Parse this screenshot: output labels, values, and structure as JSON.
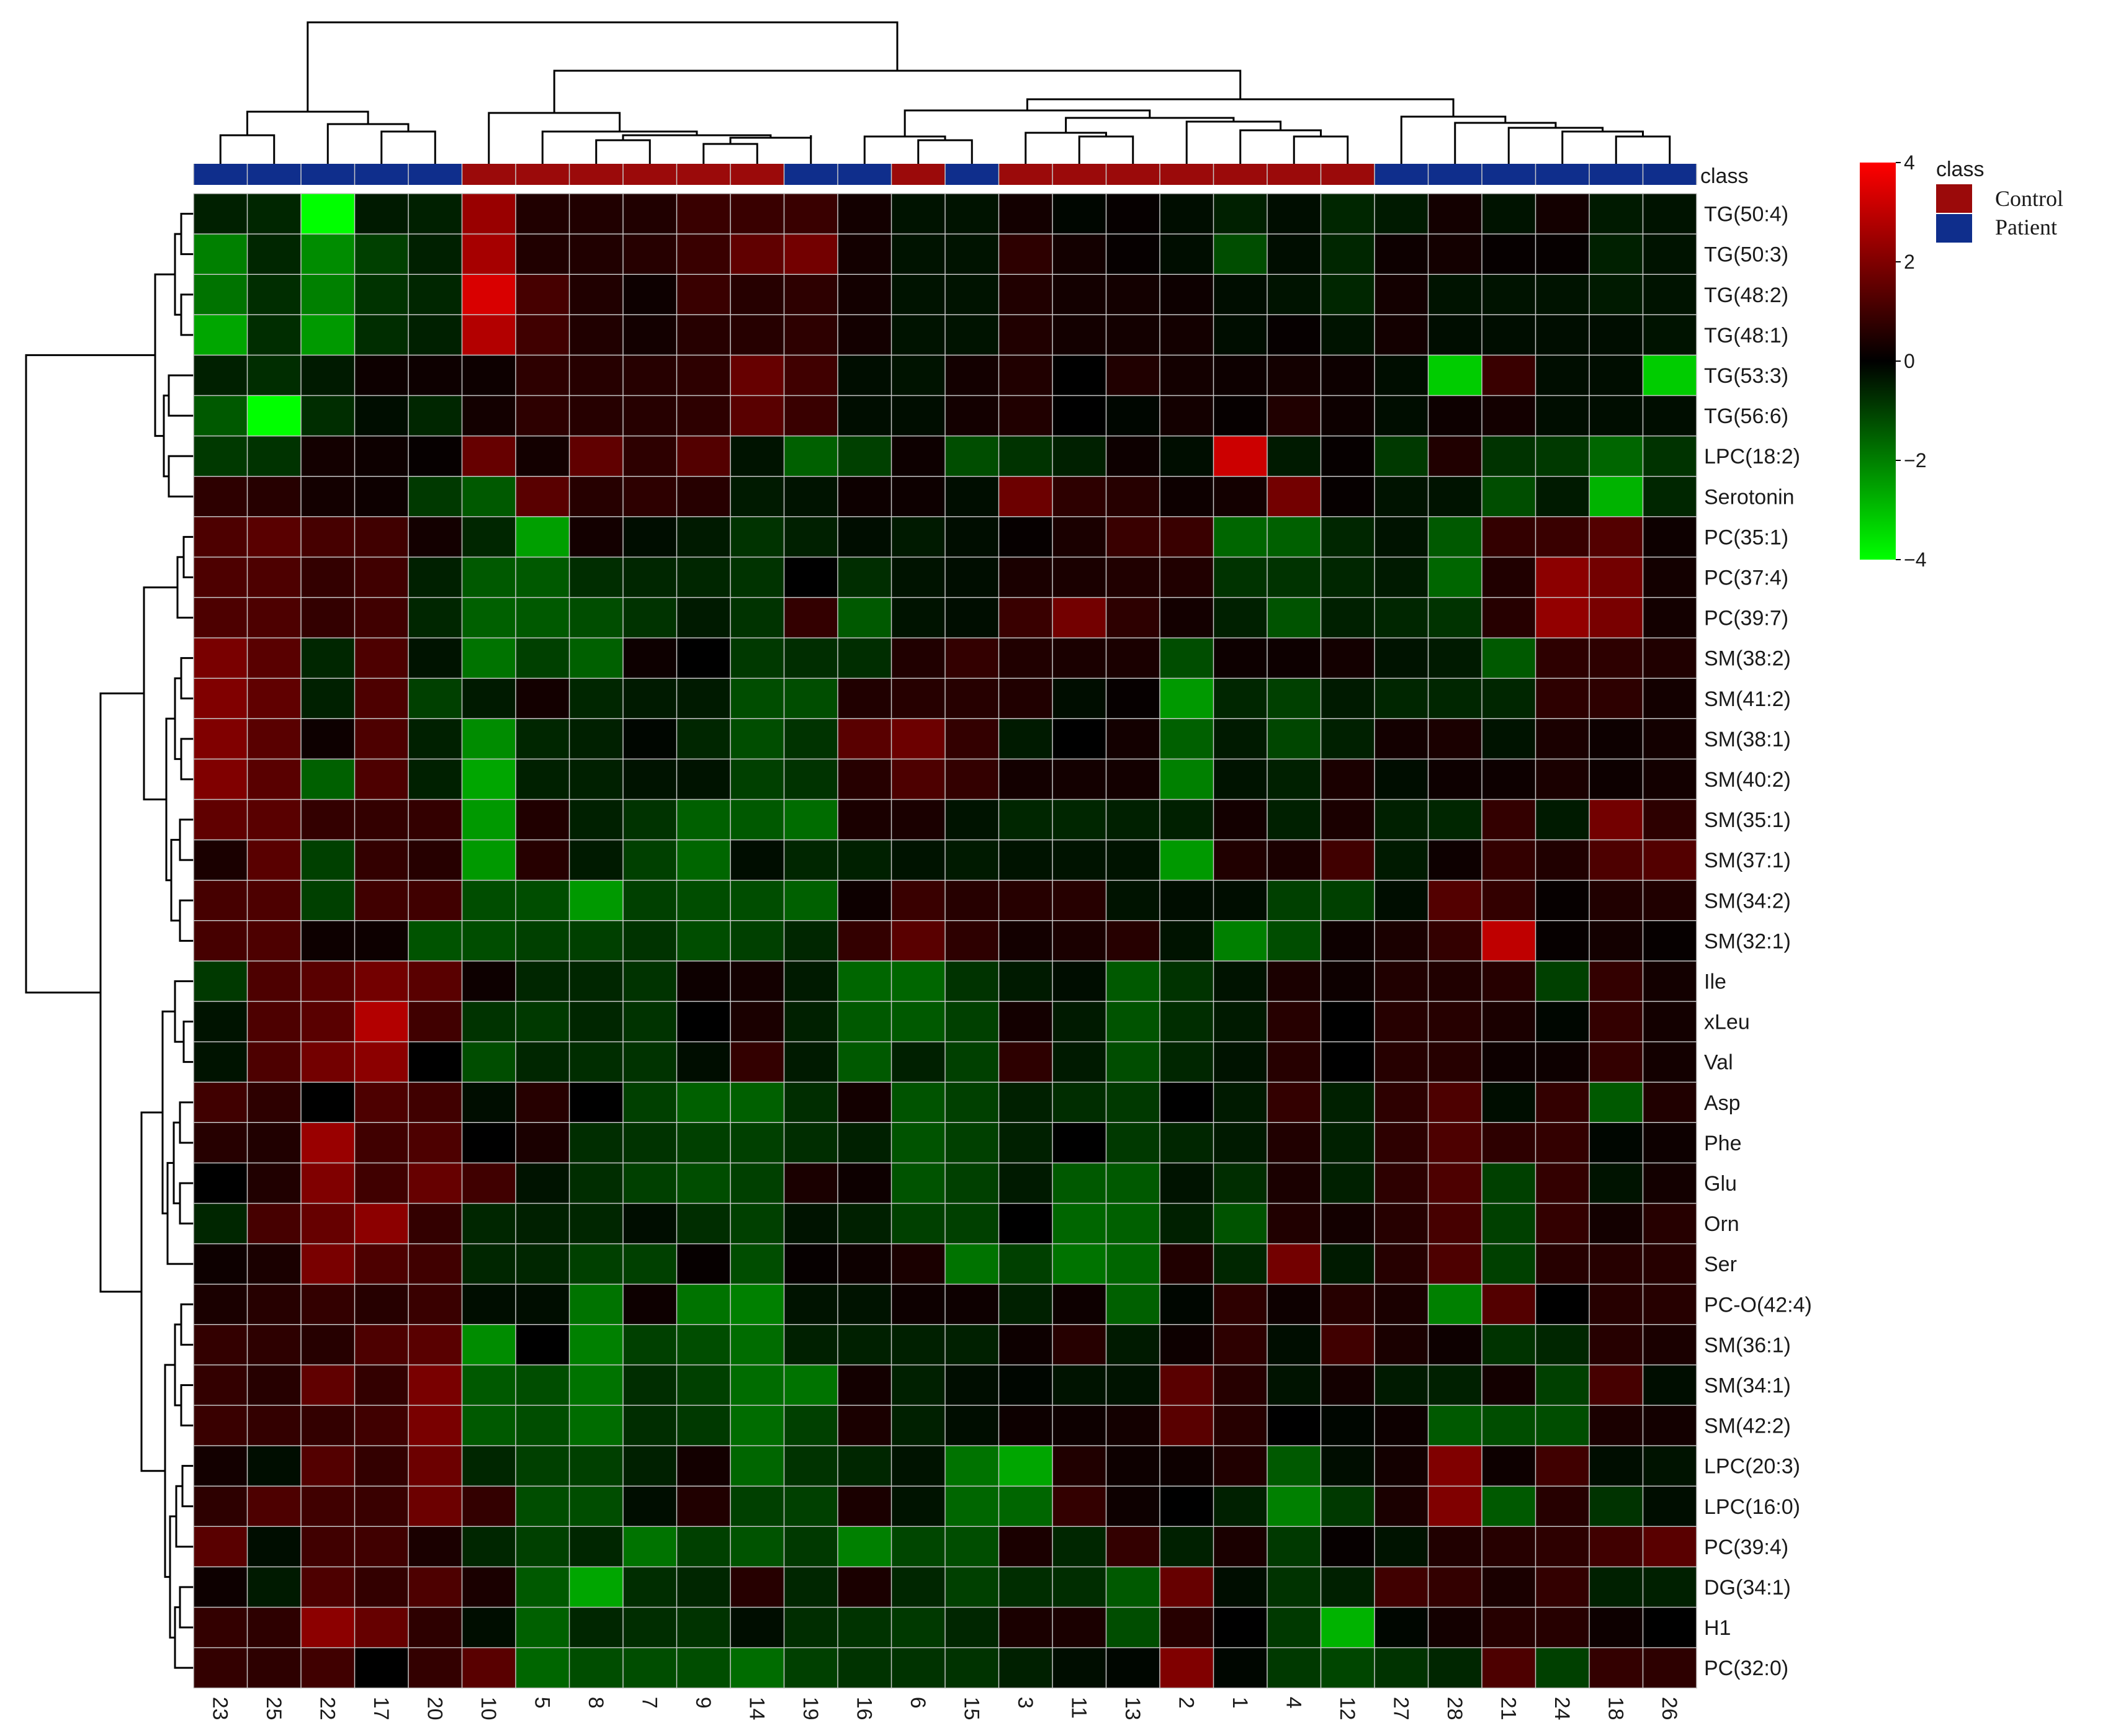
{
  "chart_data": {
    "type": "heatmap",
    "class_label": "class",
    "legend": {
      "title": "class",
      "items": [
        {
          "label": "Control",
          "color": "#9b0a0a"
        },
        {
          "label": "Patient",
          "color": "#0f2e8c"
        }
      ]
    },
    "color_scale": {
      "ticks": [
        "4",
        "2",
        "0",
        "−2",
        "−4"
      ],
      "tick_values": [
        4,
        2,
        0,
        -2,
        -4
      ],
      "range": [
        -4,
        4
      ],
      "colors": {
        "high": "#ff0000",
        "mid": "#000000",
        "low": "#00ff00"
      }
    },
    "columns": [
      "23",
      "25",
      "22",
      "17",
      "20",
      "10",
      "5",
      "8",
      "7",
      "9",
      "14",
      "19",
      "16",
      "6",
      "15",
      "3",
      "11",
      "13",
      "2",
      "1",
      "4",
      "12",
      "27",
      "28",
      "21",
      "24",
      "18",
      "26"
    ],
    "column_class": [
      "P",
      "P",
      "P",
      "P",
      "P",
      "C",
      "C",
      "C",
      "C",
      "C",
      "C",
      "P",
      "P",
      "C",
      "P",
      "C",
      "C",
      "C",
      "C",
      "C",
      "C",
      "C",
      "P",
      "P",
      "P",
      "P",
      "P",
      "P"
    ],
    "rows": [
      "TG(50:4)",
      "TG(50:3)",
      "TG(48:2)",
      "TG(48:1)",
      "TG(53:3)",
      "TG(56:6)",
      "LPC(18:2)",
      "Serotonin",
      "PC(35:1)",
      "PC(37:4)",
      "PC(39:7)",
      "SM(38:2)",
      "SM(41:2)",
      "SM(38:1)",
      "SM(40:2)",
      "SM(35:1)",
      "SM(37:1)",
      "SM(34:2)",
      "SM(32:1)",
      "Ile",
      "xLeu",
      "Val",
      "Asp",
      "Phe",
      "Glu",
      "Orn",
      "Ser",
      "PC-O(42:4)",
      "SM(36:1)",
      "SM(34:1)",
      "SM(42:2)",
      "LPC(20:3)",
      "LPC(16:0)",
      "PC(39:4)",
      "DG(34:1)",
      "H1",
      "PC(32:0)"
    ],
    "values": [
      [
        -0.5,
        -0.6,
        -4,
        -0.4,
        -0.5,
        2.4,
        0.5,
        0.5,
        0.5,
        0.9,
        0.9,
        0.9,
        0.3,
        -0.3,
        -0.3,
        0.3,
        -0.1,
        0.1,
        -0.2,
        -0.5,
        -0.2,
        -0.6,
        -0.4,
        0.3,
        -0.3,
        0.3,
        -0.4,
        -0.3
      ],
      [
        -2,
        -0.6,
        -2.2,
        -1,
        -0.5,
        2.6,
        0.5,
        0.5,
        0.6,
        0.9,
        1.5,
        1.8,
        0.3,
        -0.3,
        -0.3,
        0.7,
        0.3,
        0.1,
        -0.2,
        -1.2,
        -0.2,
        -0.6,
        0.2,
        0.3,
        0.1,
        0.1,
        -0.5,
        -0.3
      ],
      [
        -1.8,
        -0.7,
        -2,
        -0.8,
        -0.6,
        3.4,
        1.1,
        0.5,
        0.2,
        0.9,
        0.6,
        0.7,
        0.3,
        -0.3,
        -0.3,
        0.5,
        0.3,
        0.3,
        0.2,
        -0.2,
        -0.3,
        -0.6,
        0.3,
        -0.3,
        -0.3,
        -0.3,
        -0.4,
        -0.3
      ],
      [
        -2.6,
        -0.7,
        -2.4,
        -0.7,
        -0.5,
        2.8,
        1,
        0.5,
        0.3,
        0.6,
        0.6,
        0.7,
        0.3,
        -0.3,
        -0.3,
        0.5,
        0.3,
        0.3,
        0.3,
        -0.2,
        0.1,
        -0.3,
        0.3,
        -0.2,
        -0.2,
        -0.2,
        -0.2,
        -0.3
      ],
      [
        -0.5,
        -0.7,
        -0.4,
        0.2,
        0.2,
        0.2,
        0.7,
        0.6,
        0.6,
        0.7,
        1.6,
        1,
        -0.2,
        -0.3,
        0.3,
        0.5,
        0,
        0.5,
        0.3,
        0.2,
        0.3,
        0.2,
        -0.2,
        -3.2,
        0.9,
        -0.2,
        -0.2,
        -3.2
      ],
      [
        -1.4,
        -4,
        -0.7,
        -0.2,
        -0.6,
        0.3,
        0.7,
        0.6,
        0.6,
        0.7,
        1.4,
        0.9,
        -0.2,
        -0.2,
        0.3,
        0.5,
        0,
        -0.1,
        0.3,
        0.1,
        0.5,
        0.2,
        -0.2,
        0.2,
        0.3,
        -0.2,
        -0.2,
        -0.2
      ],
      [
        -0.9,
        -0.8,
        0.3,
        0.2,
        0.1,
        1.6,
        0.3,
        1.5,
        0.7,
        1.3,
        -0.3,
        -1.5,
        -1,
        0.2,
        -1.2,
        -0.8,
        -0.5,
        0.2,
        -0.2,
        3.2,
        -0.4,
        0.1,
        -0.9,
        0.5,
        -0.8,
        -0.9,
        -1.6,
        -0.8
      ],
      [
        0.7,
        0.6,
        0.3,
        0.2,
        -0.9,
        -1.4,
        1.4,
        0.6,
        0.7,
        0.6,
        -0.4,
        -0.3,
        0.2,
        0.2,
        -0.2,
        1.7,
        0.7,
        0.6,
        0.2,
        0.3,
        1.8,
        0.1,
        -0.3,
        -0.3,
        -1.2,
        -0.4,
        -2.8,
        -0.6
      ],
      [
        1.2,
        1.4,
        1.1,
        1,
        0.3,
        -0.6,
        -2.5,
        0.3,
        -0.2,
        -0.4,
        -0.8,
        -0.5,
        -0.2,
        -0.4,
        -0.2,
        0.1,
        0.4,
        0.9,
        0.9,
        -1.6,
        -1.5,
        -0.6,
        -0.3,
        -1.4,
        0.8,
        0.9,
        1.3,
        0.2
      ],
      [
        1.2,
        1.2,
        0.8,
        1,
        -0.5,
        -1.4,
        -1.4,
        -0.7,
        -0.6,
        -0.6,
        -0.8,
        0,
        -0.7,
        -0.3,
        -0.2,
        0.4,
        0.4,
        0.5,
        0.5,
        -0.8,
        -0.8,
        -0.6,
        -0.4,
        -1.6,
        0.5,
        2.2,
        1.8,
        0.3
      ],
      [
        1.2,
        1.2,
        0.8,
        1,
        -0.6,
        -1.5,
        -1.4,
        -1.2,
        -0.8,
        -0.4,
        -0.8,
        0.8,
        -1.4,
        -0.3,
        -0.2,
        0.9,
        1.8,
        0.7,
        0.3,
        -0.5,
        -1.3,
        -0.5,
        -0.6,
        -0.8,
        0.6,
        2.3,
        1.9,
        0.3
      ],
      [
        1.9,
        1.4,
        -0.6,
        1.2,
        -0.3,
        -1.8,
        -1,
        -1.5,
        0.2,
        0,
        -0.9,
        -0.7,
        -0.7,
        0.5,
        0.8,
        0.5,
        0.4,
        0.4,
        -1.2,
        0.2,
        0.2,
        0.3,
        -0.3,
        -0.4,
        -1.4,
        0.7,
        0.7,
        0.5
      ],
      [
        2,
        1.5,
        -0.5,
        1.2,
        -1,
        -0.4,
        0.3,
        -0.6,
        -0.4,
        -0.4,
        -1.2,
        -1.2,
        0.5,
        0.6,
        0.6,
        0.5,
        -0.2,
        0.1,
        -2.4,
        -0.6,
        -1,
        -0.4,
        -0.6,
        -0.6,
        -0.6,
        0.7,
        0.7,
        0.3
      ],
      [
        2,
        1.4,
        0.2,
        1.2,
        -0.5,
        -2.2,
        -0.6,
        -0.5,
        -0.1,
        -0.6,
        -1.2,
        -0.8,
        1.4,
        1.7,
        0.8,
        -0.4,
        0,
        0.3,
        -1.5,
        -0.4,
        -1.1,
        -0.5,
        0.3,
        0.4,
        -0.3,
        0.4,
        0.2,
        0.3
      ],
      [
        2,
        1.4,
        -1.5,
        1.2,
        -0.5,
        -2.6,
        -0.5,
        -0.5,
        -0.3,
        -0.3,
        -1,
        -0.8,
        0.6,
        1.2,
        0.8,
        0.3,
        0.3,
        0.3,
        -2,
        -0.3,
        -0.5,
        0.4,
        -0.2,
        0.2,
        0.2,
        0.4,
        0.2,
        0.3
      ],
      [
        1.5,
        1.4,
        0.8,
        0.8,
        0.8,
        -2.4,
        0.5,
        -0.5,
        -0.8,
        -1.5,
        -1.4,
        -1.7,
        0.4,
        0.4,
        -0.3,
        -0.6,
        -0.6,
        -0.5,
        -0.5,
        0.3,
        -0.5,
        0.4,
        -0.5,
        -0.6,
        0.8,
        -0.4,
        1.8,
        0.7
      ],
      [
        0.4,
        1.4,
        -1,
        0.8,
        0.6,
        -2.4,
        0.6,
        -0.4,
        -1,
        -1.6,
        -0.2,
        -0.6,
        -0.5,
        -0.3,
        -0.4,
        -0.3,
        -0.3,
        -0.3,
        -2.4,
        0.5,
        0.4,
        1,
        -0.4,
        0.2,
        0.8,
        0.5,
        1.2,
        1.3
      ],
      [
        1.1,
        1.2,
        -1,
        1,
        1,
        -1.2,
        -1.2,
        -2.4,
        -1,
        -1.2,
        -1.2,
        -1.5,
        0.2,
        0.9,
        0.6,
        0.6,
        0.6,
        -0.3,
        -0.2,
        -0.2,
        -1,
        -1,
        -0.2,
        1.3,
        0.8,
        0.1,
        0.5,
        0.5
      ],
      [
        1.1,
        1.2,
        0.2,
        0.2,
        -1.3,
        -1.2,
        -1,
        -1,
        -0.8,
        -1.2,
        -1,
        -0.6,
        0.8,
        1.4,
        0.7,
        0.3,
        0.4,
        0.6,
        -0.3,
        -2,
        -1.2,
        0.2,
        0.4,
        0.8,
        3,
        0.1,
        0.3,
        0.1
      ],
      [
        -0.9,
        1.2,
        1.4,
        1.8,
        1.4,
        0.2,
        -0.6,
        -0.6,
        -0.8,
        0.2,
        0.3,
        -0.4,
        -1.6,
        -1.6,
        -0.8,
        -0.4,
        -0.2,
        -1.4,
        -0.8,
        -0.3,
        0.4,
        0.2,
        0.5,
        0.5,
        0.6,
        -1,
        0.8,
        0.3
      ],
      [
        -0.3,
        1.2,
        1.4,
        2.8,
        1,
        -0.8,
        -0.9,
        -0.6,
        -0.8,
        0,
        0.4,
        -0.5,
        -1.4,
        -1.4,
        -1,
        0.3,
        -0.4,
        -1.3,
        -0.7,
        -0.4,
        0.6,
        0,
        0.6,
        0.6,
        0.4,
        -0.1,
        0.8,
        0.3
      ],
      [
        -0.3,
        1.2,
        1.8,
        2.2,
        0,
        -1.2,
        -0.6,
        -0.7,
        -0.8,
        -0.2,
        0.8,
        -0.4,
        -1.4,
        -0.5,
        -1,
        0.7,
        -0.4,
        -1.2,
        -0.6,
        -0.3,
        0.6,
        0,
        0.6,
        0.6,
        0.2,
        0.2,
        0.8,
        0.3
      ],
      [
        1,
        0.7,
        0,
        1.2,
        1,
        -0.2,
        0.6,
        0,
        -1,
        -1.5,
        -1.5,
        -0.7,
        0.3,
        -1.3,
        -1,
        -0.5,
        -0.7,
        -0.9,
        0,
        -0.4,
        0.8,
        -0.5,
        0.7,
        1.2,
        -0.2,
        0.8,
        -1.4,
        0.5
      ],
      [
        0.6,
        0.5,
        2.4,
        1,
        1.2,
        0,
        0.4,
        -0.7,
        -0.8,
        -1,
        -1,
        -0.7,
        -0.5,
        -1.3,
        -1,
        -0.5,
        0,
        -0.9,
        -0.6,
        -0.4,
        0.5,
        -0.5,
        0.7,
        1.2,
        0.7,
        0.8,
        -0.1,
        0.2
      ],
      [
        0,
        0.5,
        2,
        1,
        1.6,
        1,
        -0.3,
        -0.7,
        -1,
        -1.2,
        -1,
        0.4,
        0.2,
        -1.3,
        -1,
        -0.4,
        -1.4,
        -1.4,
        -0.3,
        -0.7,
        0.4,
        -0.5,
        0.7,
        1.2,
        -1,
        0.8,
        -0.3,
        0.3
      ],
      [
        -0.6,
        1.1,
        1.6,
        2.2,
        0.8,
        -0.6,
        -0.5,
        -0.6,
        -0.2,
        -0.7,
        -1,
        -0.3,
        -0.5,
        -1,
        -1,
        0,
        -1.6,
        -1.5,
        -0.5,
        -1.3,
        0.5,
        0.3,
        0.6,
        1.1,
        -1,
        0.8,
        0.3,
        0.6
      ],
      [
        0.2,
        0.4,
        1.9,
        1.2,
        1,
        -0.6,
        -0.6,
        -1,
        -1,
        0.1,
        -1.2,
        0.1,
        0.2,
        0.4,
        -1.8,
        -1,
        -1.8,
        -1.6,
        0.5,
        -0.6,
        1.8,
        -0.4,
        0.6,
        1.2,
        -1,
        0.6,
        0.6,
        0.6
      ],
      [
        0.4,
        0.6,
        0.8,
        0.6,
        0.9,
        -0.2,
        -0.2,
        -1.8,
        0.2,
        -1.8,
        -2,
        -0.3,
        -0.3,
        0.2,
        0.2,
        -0.5,
        0.2,
        -1.5,
        -0.1,
        0.7,
        0.2,
        0.6,
        0.4,
        -2,
        1.3,
        0,
        0.6,
        0.6
      ],
      [
        0.8,
        0.7,
        0.6,
        1.2,
        1.4,
        -2.2,
        0,
        -2,
        -1,
        -1.2,
        -1.7,
        -0.5,
        -0.5,
        -0.5,
        -0.5,
        0.2,
        0.6,
        -0.4,
        0.2,
        0.7,
        -0.2,
        1,
        0.4,
        0.2,
        -0.8,
        -0.6,
        0.6,
        0.4
      ],
      [
        0.8,
        0.6,
        1.5,
        0.8,
        1.9,
        -1.4,
        -1.2,
        -1.8,
        -0.7,
        -1,
        -1.7,
        -1.8,
        0.3,
        -0.5,
        -0.2,
        -0.1,
        -0.3,
        -0.3,
        1.4,
        0.6,
        -0.3,
        0.3,
        -0.4,
        -0.5,
        0.3,
        -1,
        1.1,
        -0.2
      ],
      [
        0.9,
        0.8,
        0.8,
        1,
        1.9,
        -1.4,
        -1.2,
        -1.7,
        -0.7,
        -0.9,
        -1.7,
        -1,
        0.4,
        -0.5,
        -0.2,
        0.2,
        0.2,
        0.3,
        1.4,
        0.6,
        0,
        -0.1,
        0.2,
        -1.4,
        -1.2,
        -1.2,
        0.4,
        0.3
      ],
      [
        0.3,
        -0.2,
        1.3,
        0.8,
        1.7,
        -0.6,
        -1,
        -1,
        -0.5,
        0.3,
        -1.6,
        -0.8,
        -0.6,
        -0.3,
        -1.8,
        -2.6,
        0.5,
        0.2,
        0.2,
        0.5,
        -1.4,
        -0.2,
        0.3,
        2,
        0.2,
        1,
        -0.2,
        -0.3
      ],
      [
        0.7,
        1.2,
        1,
        0.9,
        1.7,
        0.8,
        -1.2,
        -1.2,
        -0.2,
        0.5,
        -1,
        -1,
        0.4,
        -0.3,
        -1.6,
        -1.6,
        0.8,
        0.2,
        0,
        -0.5,
        -2,
        -0.9,
        0.4,
        2,
        -1.4,
        0.6,
        -0.8,
        -0.2
      ],
      [
        1.4,
        -0.2,
        1,
        1,
        0.4,
        -0.6,
        -1,
        -0.6,
        -1.8,
        -1,
        -1.3,
        -0.9,
        -2,
        -1.1,
        -1.2,
        0.4,
        -0.6,
        0.8,
        -0.5,
        0.4,
        -0.9,
        0.1,
        -0.3,
        0.5,
        0.6,
        0.7,
        1,
        1.4
      ],
      [
        0.2,
        -0.4,
        1.2,
        0.8,
        1.2,
        0.4,
        -1.4,
        -2.6,
        -0.7,
        -0.6,
        0.6,
        -0.6,
        0.4,
        -0.6,
        -1,
        -0.7,
        -0.7,
        -1.4,
        1.6,
        -0.2,
        -0.8,
        -0.5,
        1,
        0.8,
        0.4,
        0.8,
        -0.5,
        -0.5
      ],
      [
        0.8,
        0.7,
        2.2,
        1.6,
        0.7,
        -0.2,
        -1.5,
        -0.6,
        -0.7,
        -0.8,
        -0.2,
        -0.7,
        -0.8,
        -0.9,
        -0.6,
        0.4,
        0.4,
        -1.2,
        0.6,
        0,
        -0.9,
        -2.8,
        -0.1,
        0.3,
        0.6,
        0.6,
        0.2,
        0
      ],
      [
        0.8,
        0.7,
        1,
        0,
        0.8,
        1.4,
        -1.6,
        -1.2,
        -1.2,
        -1.2,
        -1.7,
        -1,
        -0.8,
        -0.8,
        -0.8,
        -0.5,
        -0.2,
        -0.1,
        2,
        -0.1,
        -0.9,
        -1.1,
        -0.8,
        -0.6,
        1.2,
        -1,
        0.8,
        0.7
      ]
    ]
  }
}
